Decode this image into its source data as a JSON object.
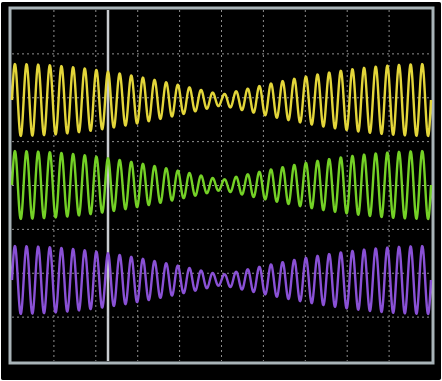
{
  "screen": {
    "background": "#000000",
    "bezel_color": "#a9b4b8",
    "grid_color": "#8d8d8d",
    "grid_divisions": {
      "horizontal": 10,
      "vertical": 8
    },
    "cursor_color": "#c9ccd0"
  },
  "traces": [
    {
      "name": "trace-1",
      "color": "#e3d63a",
      "shape": "amplitude-modulated sine",
      "cycles": 36,
      "min_amplitude_fraction": 0.15
    },
    {
      "name": "trace-2",
      "color": "#74d126",
      "shape": "amplitude-modulated sine",
      "cycles": 36,
      "min_amplitude_fraction": 0.15
    },
    {
      "name": "trace-3",
      "color": "#8a51d6",
      "shape": "amplitude-modulated sine",
      "cycles": 36,
      "min_amplitude_fraction": 0.15
    }
  ]
}
